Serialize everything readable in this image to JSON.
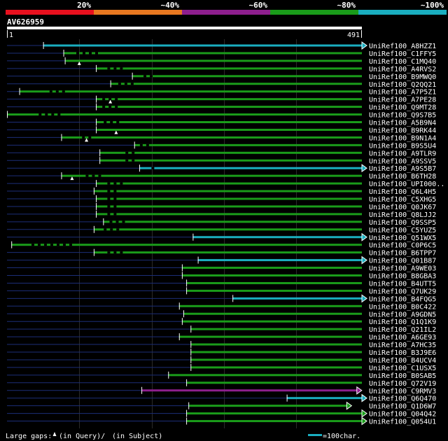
{
  "chart_data": {
    "type": "alignment-overview",
    "title": "",
    "query_id": "AV626959",
    "query_start": "1",
    "query_end": "491",
    "query_length": 491,
    "identity_scale": [
      {
        "label": "20%",
        "color": "#e8101e"
      },
      {
        "label": "~40%",
        "color": "#e87820"
      },
      {
        "label": "~60%",
        "color": "#8e1f8e"
      },
      {
        "label": "~80%",
        "color": "#1a9c1a"
      },
      {
        "label": "~100%",
        "color": "#1aaec0"
      }
    ],
    "legend": {
      "gaps_text": "Large gaps: ",
      "query_gap_text": "(in Query)/",
      "subject_gap_text": "(in Subject)",
      "scale_text": "=100char."
    },
    "hits": [
      {
        "label": "UniRef100_A8HZZ1",
        "start": 50,
        "end": 491,
        "color": "cyan",
        "pre": true,
        "arrow": "right",
        "marks": [],
        "gaps": []
      },
      {
        "label": "UniRef100_C1FFY5",
        "start": 78,
        "end": 491,
        "color": "green",
        "pre": true,
        "arrow": "none",
        "marks": [],
        "gaps": [
          [
            92,
            128
          ]
        ]
      },
      {
        "label": "UniRef100_C1MQ40",
        "start": 80,
        "end": 491,
        "color": "green",
        "pre": true,
        "arrow": "none",
        "marks": [
          100
        ],
        "gaps": []
      },
      {
        "label": "UniRef100_A4RVS2",
        "start": 123,
        "end": 491,
        "color": "green",
        "pre": true,
        "arrow": "none",
        "marks": [],
        "gaps": [
          [
            135,
            155
          ]
        ]
      },
      {
        "label": "UniRef100_B9MWQ0",
        "start": 173,
        "end": 491,
        "color": "green",
        "pre": true,
        "arrow": "none",
        "marks": [],
        "gaps": [
          [
            185,
            200
          ]
        ]
      },
      {
        "label": "UniRef100_Q2QQ21",
        "start": 143,
        "end": 491,
        "color": "green",
        "pre": true,
        "arrow": "none",
        "marks": [],
        "gaps": [
          [
            150,
            170
          ]
        ]
      },
      {
        "label": "UniRef100_A7P5Z1",
        "start": 17,
        "end": 491,
        "color": "green",
        "pre": true,
        "arrow": "none",
        "marks": [],
        "gaps": [
          [
            55,
            80
          ]
        ]
      },
      {
        "label": "UniRef100_A7PE28",
        "start": 123,
        "end": 491,
        "color": "green",
        "pre": true,
        "arrow": "none",
        "marks": [
          143
        ],
        "gaps": [
          [
            128,
            150
          ]
        ]
      },
      {
        "label": "UniRef100_Q9MT28",
        "start": 123,
        "end": 491,
        "color": "green",
        "pre": true,
        "arrow": "none",
        "marks": [],
        "gaps": [
          [
            128,
            150
          ]
        ]
      },
      {
        "label": "UniRef100_Q9S7B5",
        "start": 0,
        "end": 491,
        "color": "green",
        "pre": false,
        "arrow": "none",
        "marks": [],
        "gaps": [
          [
            40,
            70
          ]
        ]
      },
      {
        "label": "UniRef100_A5B9N4",
        "start": 123,
        "end": 491,
        "color": "green",
        "pre": true,
        "arrow": "none",
        "marks": [],
        "gaps": [
          [
            130,
            158
          ]
        ]
      },
      {
        "label": "UniRef100_B9RK44",
        "start": 123,
        "end": 491,
        "color": "green",
        "pre": true,
        "arrow": "none",
        "marks": [
          151
        ],
        "gaps": []
      },
      {
        "label": "UniRef100_B9N1A4",
        "start": 75,
        "end": 491,
        "color": "green",
        "pre": true,
        "arrow": "none",
        "marks": [
          110
        ],
        "gaps": [
          [
            100,
            118
          ]
        ]
      },
      {
        "label": "UniRef100_B9S5U4",
        "start": 176,
        "end": 491,
        "color": "green",
        "pre": true,
        "arrow": "none",
        "marks": [],
        "gaps": [
          [
            180,
            195
          ]
        ]
      },
      {
        "label": "UniRef100_A9TLR9",
        "start": 128,
        "end": 491,
        "color": "green",
        "pre": true,
        "arrow": "none",
        "marks": [],
        "gaps": [
          [
            160,
            175
          ]
        ]
      },
      {
        "label": "UniRef100_A9SSV5",
        "start": 128,
        "end": 491,
        "color": "green",
        "pre": true,
        "arrow": "none",
        "marks": [],
        "gaps": [
          [
            160,
            175
          ]
        ]
      },
      {
        "label": "UniRef100_A9S5B7",
        "start": 183,
        "end": 491,
        "color": "cyan",
        "pre": true,
        "arrow": "right",
        "marks": [],
        "gaps": [
          [
            196,
            202
          ]
        ]
      },
      {
        "label": "UniRef100_B6TH28",
        "start": 75,
        "end": 491,
        "color": "green",
        "pre": true,
        "arrow": "none",
        "marks": [
          90
        ],
        "gaps": [
          [
            105,
            125
          ]
        ]
      },
      {
        "label": "UniRef100_UPI000..",
        "start": 123,
        "end": 491,
        "color": "green",
        "pre": true,
        "arrow": "none",
        "marks": [],
        "gaps": [
          [
            135,
            160
          ]
        ]
      },
      {
        "label": "UniRef100_Q6L4H5",
        "start": 120,
        "end": 491,
        "color": "green",
        "pre": true,
        "arrow": "none",
        "marks": [],
        "gaps": [
          [
            135,
            150
          ]
        ]
      },
      {
        "label": "UniRef100_C5XHG5",
        "start": 123,
        "end": 491,
        "color": "green",
        "pre": true,
        "arrow": "none",
        "marks": [],
        "gaps": [
          [
            135,
            150
          ]
        ]
      },
      {
        "label": "UniRef100_Q0JK67",
        "start": 123,
        "end": 491,
        "color": "green",
        "pre": true,
        "arrow": "none",
        "marks": [],
        "gaps": [
          [
            135,
            150
          ]
        ]
      },
      {
        "label": "UniRef100_Q8LJJ2",
        "start": 123,
        "end": 491,
        "color": "green",
        "pre": true,
        "arrow": "none",
        "marks": [],
        "gaps": [
          [
            135,
            150
          ]
        ]
      },
      {
        "label": "UniRef100_Q9SSP5",
        "start": 133,
        "end": 491,
        "color": "green",
        "pre": true,
        "arrow": "none",
        "marks": [],
        "gaps": [
          [
            138,
            165
          ]
        ]
      },
      {
        "label": "UniRef100_C5YUZ5",
        "start": 120,
        "end": 491,
        "color": "green",
        "pre": true,
        "arrow": "none",
        "marks": [],
        "gaps": [
          [
            130,
            150
          ]
        ]
      },
      {
        "label": "UniRef100_Q51WX5",
        "start": 257,
        "end": 491,
        "color": "cyan",
        "pre": true,
        "arrow": "right",
        "marks": [],
        "gaps": []
      },
      {
        "label": "UniRef100_C0P6C5",
        "start": 6,
        "end": 491,
        "color": "green",
        "pre": false,
        "arrow": "none",
        "marks": [],
        "gaps": [
          [
            30,
            90
          ]
        ]
      },
      {
        "label": "UniRef100_B6TPP7",
        "start": 120,
        "end": 491,
        "color": "green",
        "pre": true,
        "arrow": "none",
        "marks": [],
        "gaps": [
          [
            135,
            160
          ]
        ]
      },
      {
        "label": "UniRef100_Q01B87",
        "start": 264,
        "end": 491,
        "color": "cyan",
        "pre": true,
        "arrow": "right",
        "marks": [],
        "gaps": []
      },
      {
        "label": "UniRef100_A9WE03",
        "start": 242,
        "end": 491,
        "color": "green",
        "pre": true,
        "arrow": "none",
        "marks": [],
        "gaps": []
      },
      {
        "label": "UniRef100_B8GBA3",
        "start": 242,
        "end": 491,
        "color": "green",
        "pre": true,
        "arrow": "none",
        "marks": [],
        "gaps": []
      },
      {
        "label": "UniRef100_B4UTT5",
        "start": 248,
        "end": 491,
        "color": "green",
        "pre": true,
        "arrow": "none",
        "marks": [],
        "gaps": []
      },
      {
        "label": "UniRef100_Q7UK29",
        "start": 248,
        "end": 491,
        "color": "green",
        "pre": true,
        "arrow": "none",
        "marks": [],
        "gaps": []
      },
      {
        "label": "UniRef100_B4FQG5",
        "start": 312,
        "end": 491,
        "color": "cyan",
        "pre": true,
        "arrow": "right",
        "marks": [],
        "gaps": []
      },
      {
        "label": "UniRef100_B0C422",
        "start": 238,
        "end": 491,
        "color": "green",
        "pre": true,
        "arrow": "none",
        "marks": [],
        "gaps": []
      },
      {
        "label": "UniRef100_A9GDN5",
        "start": 244,
        "end": 491,
        "color": "green",
        "pre": true,
        "arrow": "none",
        "marks": [],
        "gaps": []
      },
      {
        "label": "UniRef100_Q1Q1K9",
        "start": 242,
        "end": 491,
        "color": "green",
        "pre": true,
        "arrow": "none",
        "marks": [],
        "gaps": []
      },
      {
        "label": "UniRef100_Q21IL2",
        "start": 254,
        "end": 491,
        "color": "green",
        "pre": true,
        "arrow": "none",
        "marks": [],
        "gaps": []
      },
      {
        "label": "UniRef100_A6GE93",
        "start": 238,
        "end": 491,
        "color": "green",
        "pre": true,
        "arrow": "none",
        "marks": [],
        "gaps": []
      },
      {
        "label": "UniRef100_A7HC35",
        "start": 254,
        "end": 491,
        "color": "green",
        "pre": true,
        "arrow": "none",
        "marks": [],
        "gaps": []
      },
      {
        "label": "UniRef100_B3J9E6",
        "start": 254,
        "end": 491,
        "color": "green",
        "pre": true,
        "arrow": "none",
        "marks": [],
        "gaps": []
      },
      {
        "label": "UniRef100_B4UCV4",
        "start": 254,
        "end": 491,
        "color": "green",
        "pre": true,
        "arrow": "none",
        "marks": [],
        "gaps": []
      },
      {
        "label": "UniRef100_C1USX5",
        "start": 254,
        "end": 491,
        "color": "green",
        "pre": true,
        "arrow": "none",
        "marks": [],
        "gaps": []
      },
      {
        "label": "UniRef100_B0SAB5",
        "start": 223,
        "end": 491,
        "color": "green",
        "pre": true,
        "arrow": "none",
        "marks": [],
        "gaps": []
      },
      {
        "label": "UniRef100_Q72V19",
        "start": 248,
        "end": 491,
        "color": "green",
        "pre": true,
        "arrow": "none",
        "marks": [],
        "gaps": []
      },
      {
        "label": "UniRef100_C9RMV3",
        "start": 186,
        "end": 484,
        "color": "purple",
        "pre": true,
        "arrow": "right",
        "marks": [],
        "gaps": []
      },
      {
        "label": "UniRef100_Q6Q470",
        "start": 387,
        "end": 491,
        "color": "cyan",
        "pre": true,
        "arrow": "right",
        "marks": [],
        "gaps": []
      },
      {
        "label": "UniRef100_Q1D6W7",
        "start": 251,
        "end": 470,
        "color": "green",
        "pre": true,
        "arrow": "right",
        "marks": [],
        "gaps": []
      },
      {
        "label": "UniRef100_Q04Q42",
        "start": 248,
        "end": 491,
        "color": "green",
        "pre": true,
        "arrow": "right",
        "marks": [],
        "gaps": []
      },
      {
        "label": "UniRef100_Q054U1",
        "start": 248,
        "end": 491,
        "color": "green",
        "pre": true,
        "arrow": "right",
        "marks": [],
        "gaps": []
      }
    ]
  }
}
